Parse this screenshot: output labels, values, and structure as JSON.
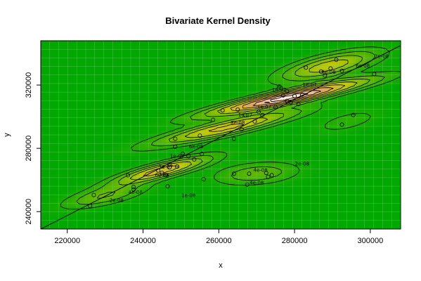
{
  "chart_data": {
    "type": "heatmap",
    "subtype": "bivariate-kernel-density-with-contours-and-scatter",
    "title": "Bivariate Kernel Density",
    "xlabel": "x",
    "ylabel": "y",
    "xlim": [
      213000,
      308000
    ],
    "ylim": [
      229000,
      348000
    ],
    "x_ticks": [
      220000,
      240000,
      260000,
      280000,
      300000
    ],
    "x_tick_labels": [
      "220000",
      "240000",
      "260000",
      "280000",
      "300000"
    ],
    "y_ticks": [
      240000,
      280000,
      320000
    ],
    "y_tick_labels": [
      "240000",
      "280000",
      "320000"
    ],
    "grid": true,
    "colors": {
      "low": "#00a800",
      "mid": "#c8c800",
      "high": "#e8a070",
      "peak": "#ffffff",
      "contour": "#000000",
      "grid": "#80d080"
    },
    "regression_line": [
      [
        213000,
        229000
      ],
      [
        308000,
        345000
      ]
    ],
    "density_components": [
      {
        "cx": 278000,
        "cy": 312000,
        "sx": 13000,
        "sy": 7000,
        "rho": 0.92,
        "w": 1.0
      },
      {
        "cx": 262000,
        "cy": 293000,
        "sx": 12000,
        "sy": 7000,
        "rho": 0.9,
        "w": 0.55
      },
      {
        "cx": 245000,
        "cy": 266000,
        "sx": 8000,
        "sy": 5500,
        "rho": 0.85,
        "w": 0.6
      },
      {
        "cx": 230000,
        "cy": 250000,
        "sx": 7000,
        "sy": 5000,
        "rho": 0.7,
        "w": 0.25
      },
      {
        "cx": 289000,
        "cy": 332000,
        "sx": 8000,
        "sy": 6000,
        "rho": 0.7,
        "w": 0.45
      },
      {
        "cx": 270000,
        "cy": 264000,
        "sx": 7000,
        "sy": 4500,
        "rho": 0.3,
        "w": 0.22
      },
      {
        "cx": 294000,
        "cy": 297000,
        "sx": 6000,
        "sy": 5000,
        "rho": 0.6,
        "w": 0.1
      }
    ],
    "contour_levels": [
      0.06,
      0.14,
      0.24,
      0.36,
      0.5,
      0.64,
      0.78,
      0.9
    ],
    "contour_labels": [
      {
        "text": "2e-08",
        "x": 303000,
        "y": 338000
      },
      {
        "text": "6e-08",
        "x": 298000,
        "y": 332000
      },
      {
        "text": "8e-08",
        "x": 289000,
        "y": 328000
      },
      {
        "text": "1e-07",
        "x": 284000,
        "y": 320000
      },
      {
        "text": "1e-07",
        "x": 276000,
        "y": 317000
      },
      {
        "text": "1e-07",
        "x": 272000,
        "y": 306000
      },
      {
        "text": "1e-07",
        "x": 267000,
        "y": 301000
      },
      {
        "text": "8e-08",
        "x": 265000,
        "y": 296000
      },
      {
        "text": "6e-08",
        "x": 254000,
        "y": 281000
      },
      {
        "text": "1e-07",
        "x": 249000,
        "y": 275000
      },
      {
        "text": "1e-07",
        "x": 246000,
        "y": 268000
      },
      {
        "text": "6e-08",
        "x": 245000,
        "y": 263000
      },
      {
        "text": "4e-08",
        "x": 238000,
        "y": 252000
      },
      {
        "text": "2e-08",
        "x": 233000,
        "y": 247000
      },
      {
        "text": "2e-08",
        "x": 282000,
        "y": 270000
      },
      {
        "text": "4e-08",
        "x": 271000,
        "y": 266000
      },
      {
        "text": "4e-08",
        "x": 270000,
        "y": 258000
      },
      {
        "text": "1e-08",
        "x": 252000,
        "y": 250000
      }
    ],
    "points": [
      [
        226000,
        243500
      ],
      [
        227000,
        250500
      ],
      [
        236000,
        263000
      ],
      [
        237500,
        255500
      ],
      [
        237500,
        254000
      ],
      [
        244000,
        266000
      ],
      [
        245000,
        264500
      ],
      [
        246000,
        263000
      ],
      [
        246500,
        256000
      ],
      [
        247000,
        270000
      ],
      [
        247000,
        268000
      ],
      [
        248500,
        286000
      ],
      [
        248500,
        281000
      ],
      [
        249000,
        268500
      ],
      [
        250500,
        276500
      ],
      [
        252000,
        275000
      ],
      [
        253500,
        273000
      ],
      [
        255000,
        288000
      ],
      [
        255500,
        276500
      ],
      [
        256000,
        260500
      ],
      [
        258500,
        298000
      ],
      [
        261000,
        304000
      ],
      [
        264000,
        286000
      ],
      [
        264000,
        264000
      ],
      [
        265000,
        304500
      ],
      [
        266000,
        292000
      ],
      [
        267000,
        301000
      ],
      [
        267500,
        257000
      ],
      [
        268000,
        264000
      ],
      [
        269500,
        297000
      ],
      [
        270500,
        303000
      ],
      [
        271500,
        301000
      ],
      [
        272500,
        264500
      ],
      [
        273000,
        262000
      ],
      [
        274000,
        263000
      ],
      [
        275000,
        306000
      ],
      [
        276500,
        318000
      ],
      [
        277000,
        313500
      ],
      [
        278000,
        310000
      ],
      [
        279000,
        309000
      ],
      [
        280000,
        313000
      ],
      [
        281000,
        308000
      ],
      [
        282000,
        314000
      ],
      [
        283000,
        331000
      ],
      [
        287000,
        328500
      ],
      [
        288000,
        326000
      ],
      [
        289500,
        330500
      ],
      [
        291000,
        336000
      ],
      [
        292500,
        329000
      ],
      [
        292500,
        295000
      ],
      [
        295500,
        301000
      ],
      [
        301000,
        327000
      ],
      [
        278000,
        316000
      ],
      [
        276000,
        319000
      ]
    ]
  }
}
